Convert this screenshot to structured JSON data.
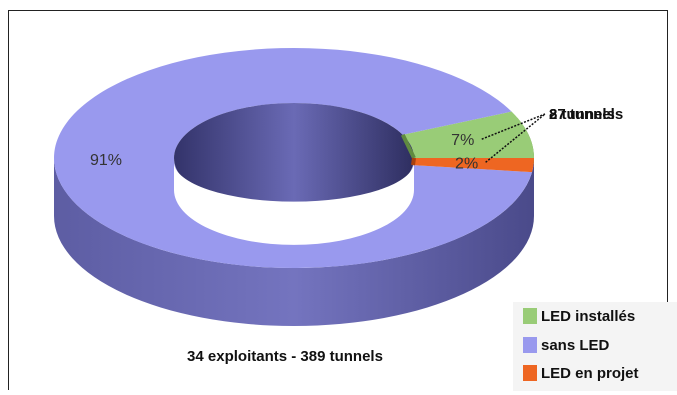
{
  "chart_data": {
    "type": "pie",
    "style": "3d-donut",
    "caption": "34 exploitants - 389 tunnels",
    "slices": [
      {
        "name": "LED installés",
        "percent_label": "7%",
        "callout": "27 tunnels",
        "value": 27,
        "color": "#99cc77",
        "side_color": "#5f8a40"
      },
      {
        "name": "sans LED",
        "percent_label": "91%",
        "callout": "",
        "value": 354,
        "color": "#9999ee",
        "side_color": "#5a5aa6"
      },
      {
        "name": "LED en projet",
        "percent_label": "2%",
        "callout": "8 tunnels",
        "value": 8,
        "color": "#ee6622",
        "side_color": "#a8410f"
      }
    ],
    "legend_position": "bottom-right"
  }
}
